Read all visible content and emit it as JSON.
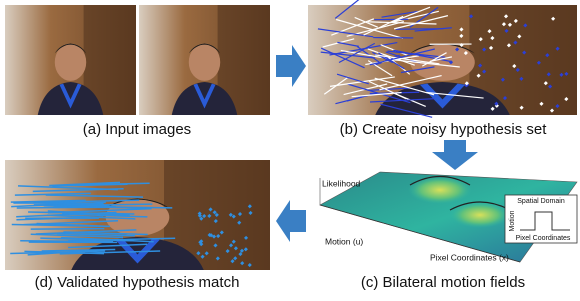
{
  "panels": [
    {
      "caption": "(a) Input images"
    },
    {
      "caption": "(b) Create noisy hypothesis set"
    },
    {
      "caption": "(c) Bilateral motion fields",
      "z_label": "Likelihood",
      "y_label": "Motion (u)",
      "x_label": "Pixel Coordinates (x)",
      "inset": {
        "title": "Spatial Domain",
        "y_label": "Motion",
        "x_label": "Pixel Coordinates"
      }
    },
    {
      "caption": "(d) Validated hypothesis match"
    }
  ]
}
